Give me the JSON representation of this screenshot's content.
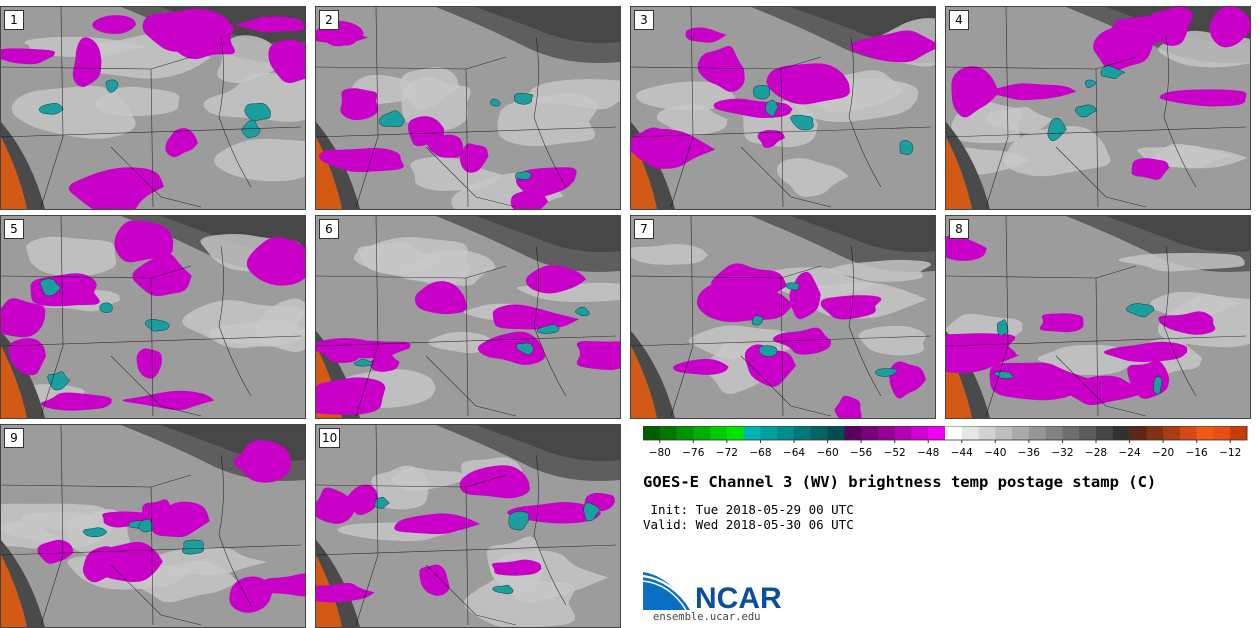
{
  "panels": [
    "1",
    "2",
    "3",
    "4",
    "5",
    "6",
    "7",
    "8",
    "9",
    "10"
  ],
  "colorbar": {
    "ticks": [
      "−80",
      "−76",
      "−72",
      "−68",
      "−64",
      "−60",
      "−56",
      "−52",
      "−48",
      "−44",
      "−40",
      "−36",
      "−32",
      "−28",
      "−24",
      "−20",
      "−16",
      "−12"
    ],
    "colors": [
      "#005f00",
      "#007800",
      "#009400",
      "#00b000",
      "#00cc00",
      "#00e600",
      "#00b4b4",
      "#00a0a0",
      "#008c8c",
      "#007878",
      "#006464",
      "#005050",
      "#5a005a",
      "#780078",
      "#960096",
      "#b400b4",
      "#d200d2",
      "#f000f0",
      "#ffffff",
      "#e6e6e6",
      "#d2d2d2",
      "#bebebe",
      "#aaaaaa",
      "#969696",
      "#828282",
      "#6e6e6e",
      "#5a5a5a",
      "#464646",
      "#323232",
      "#5a2814",
      "#823214",
      "#aa3c14",
      "#d24b14",
      "#f05a14",
      "#e65014",
      "#c83c0a"
    ]
  },
  "title": "GOES-E Channel 3 (WV) brightness temp postage stamp (C)",
  "init_text": " Init: Tue 2018-05-29 00 UTC",
  "valid_text": "Valid: Wed 2018-05-30 06 UTC",
  "logo": {
    "name": "NCAR",
    "url": "ensemble.ucar.edu",
    "color": "#0a4f9c"
  }
}
